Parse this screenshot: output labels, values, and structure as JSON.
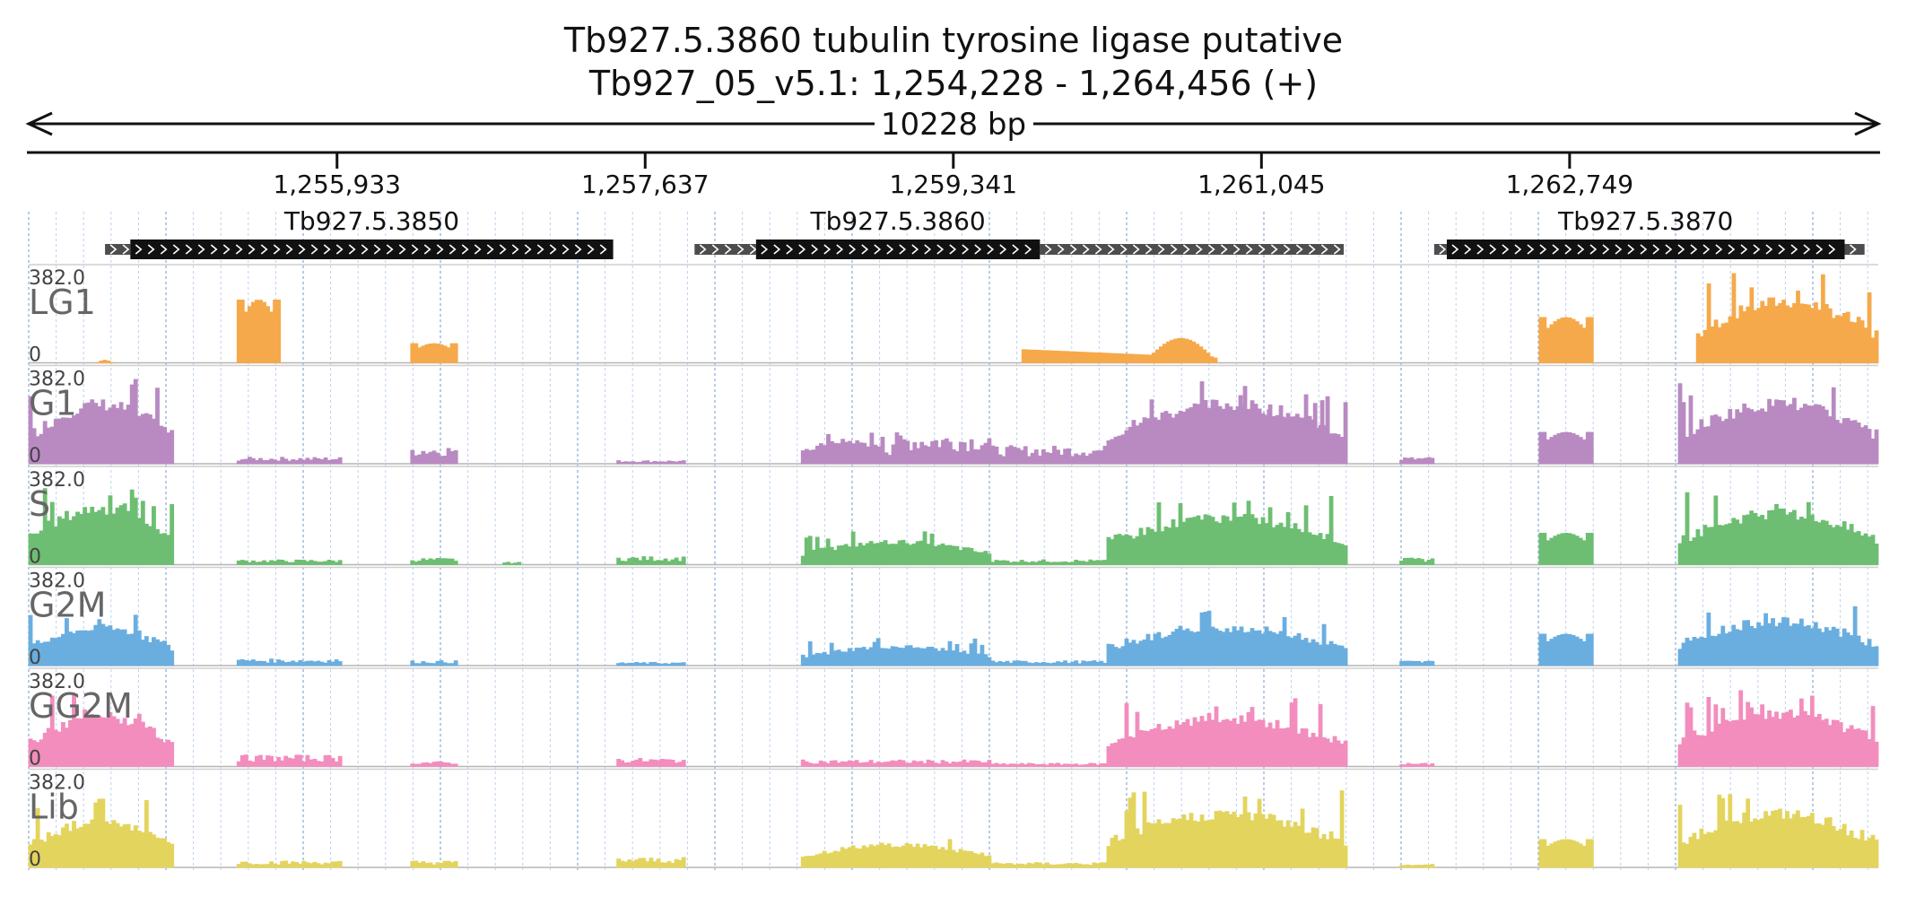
{
  "title": {
    "line1": "Tb927.5.3860  tubulin tyrosine ligase  putative",
    "line2": "Tb927_05_v5.1: 1,254,228 - 1,264,456 (+)"
  },
  "span_label": "10228 bp",
  "chart_data": {
    "type": "area",
    "x_range": [
      1254228,
      1264456
    ],
    "ticks": [
      {
        "pos": 1255933,
        "label": "1,255,933"
      },
      {
        "pos": 1257637,
        "label": "1,257,637"
      },
      {
        "pos": 1259341,
        "label": "1,259,341"
      },
      {
        "pos": 1261045,
        "label": "1,261,045"
      },
      {
        "pos": 1262749,
        "label": "1,262,749"
      }
    ],
    "genes": [
      {
        "name": "Tb927.5.3850",
        "utr5": [
          1254650,
          1254790
        ],
        "cds": [
          1254790,
          1257460
        ],
        "utr3": [
          1257460,
          1257460
        ]
      },
      {
        "name": "Tb927.5.3860",
        "utr5": [
          1257910,
          1258250
        ],
        "cds": [
          1258250,
          1259820
        ],
        "utr3": [
          1259820,
          1261500
        ]
      },
      {
        "name": "Tb927.5.3870",
        "utr5": [
          1262000,
          1262070
        ],
        "cds": [
          1262070,
          1264270
        ],
        "utr3": [
          1264270,
          1264380
        ]
      }
    ],
    "series": [
      {
        "name": "LG1",
        "color": "#F6A94A",
        "max": "382.0",
        "min": "0",
        "segments": [
          {
            "x": [
              1254600,
              1254700
            ],
            "peak": 0.03,
            "shape": "dome"
          },
          {
            "x": [
              1255380,
              1255620
            ],
            "peak": 0.72,
            "shape": "mbox"
          },
          {
            "x": [
              1256340,
              1256600
            ],
            "peak": 0.22,
            "shape": "mbox"
          },
          {
            "x": [
              1259720,
              1260800
            ],
            "peak": 0.36,
            "shape": "slope"
          },
          {
            "x": [
              1260400,
              1260800
            ],
            "peak": 0.28,
            "shape": "dome"
          },
          {
            "x": [
              1262580,
              1262880
            ],
            "peak": 0.52,
            "shape": "mbox"
          },
          {
            "x": [
              1263450,
              1264456
            ],
            "peak": 0.98,
            "shape": "spiky"
          }
        ]
      },
      {
        "name": "G1",
        "color": "#B98AC2",
        "max": "382.0",
        "min": "0",
        "segments": [
          {
            "x": [
              1254228,
              1255030
            ],
            "peak": 0.95,
            "shape": "spiky"
          },
          {
            "x": [
              1255380,
              1255960
            ],
            "peak": 0.08,
            "shape": "flat"
          },
          {
            "x": [
              1256340,
              1256600
            ],
            "peak": 0.22,
            "shape": "flat"
          },
          {
            "x": [
              1257480,
              1257860
            ],
            "peak": 0.04,
            "shape": "flat"
          },
          {
            "x": [
              1258500,
              1259000
            ],
            "peak": 0.36,
            "shape": "spiky"
          },
          {
            "x": [
              1259000,
              1259550
            ],
            "peak": 0.38,
            "shape": "flat"
          },
          {
            "x": [
              1259550,
              1260190
            ],
            "peak": 0.22,
            "shape": "flat"
          },
          {
            "x": [
              1260190,
              1261520
            ],
            "peak": 0.95,
            "shape": "spiky"
          },
          {
            "x": [
              1260900,
              1261450
            ],
            "peak": 0.8,
            "shape": "spiky"
          },
          {
            "x": [
              1261810,
              1262000
            ],
            "peak": 0.08,
            "shape": "flat"
          },
          {
            "x": [
              1262580,
              1262880
            ],
            "peak": 0.36,
            "shape": "mbox"
          },
          {
            "x": [
              1263350,
              1264456
            ],
            "peak": 0.95,
            "shape": "spiky"
          }
        ]
      },
      {
        "name": "S",
        "color": "#6DBE72",
        "max": "382.0",
        "min": "0",
        "segments": [
          {
            "x": [
              1254228,
              1255030
            ],
            "peak": 0.9,
            "shape": "spiky"
          },
          {
            "x": [
              1255380,
              1255960
            ],
            "peak": 0.06,
            "shape": "flat"
          },
          {
            "x": [
              1256340,
              1256600
            ],
            "peak": 0.08,
            "shape": "flat"
          },
          {
            "x": [
              1256850,
              1256950
            ],
            "peak": 0.03,
            "shape": "flat"
          },
          {
            "x": [
              1257480,
              1257860
            ],
            "peak": 0.1,
            "shape": "flat"
          },
          {
            "x": [
              1258500,
              1259550
            ],
            "peak": 0.36,
            "shape": "spiky"
          },
          {
            "x": [
              1259550,
              1260190
            ],
            "peak": 0.06,
            "shape": "flat"
          },
          {
            "x": [
              1260190,
              1261520
            ],
            "peak": 0.75,
            "shape": "spiky"
          },
          {
            "x": [
              1261810,
              1262000
            ],
            "peak": 0.08,
            "shape": "flat"
          },
          {
            "x": [
              1262580,
              1262880
            ],
            "peak": 0.36,
            "shape": "mbox"
          },
          {
            "x": [
              1263350,
              1264456
            ],
            "peak": 0.82,
            "shape": "spiky"
          }
        ]
      },
      {
        "name": "G2M",
        "color": "#6AAEE0",
        "max": "382.0",
        "min": "0",
        "segments": [
          {
            "x": [
              1254228,
              1255030
            ],
            "peak": 0.6,
            "shape": "spiky"
          },
          {
            "x": [
              1255380,
              1255960
            ],
            "peak": 0.08,
            "shape": "flat"
          },
          {
            "x": [
              1256340,
              1256600
            ],
            "peak": 0.06,
            "shape": "flat"
          },
          {
            "x": [
              1257480,
              1257860
            ],
            "peak": 0.04,
            "shape": "flat"
          },
          {
            "x": [
              1258500,
              1259550
            ],
            "peak": 0.3,
            "shape": "spiky"
          },
          {
            "x": [
              1259550,
              1260190
            ],
            "peak": 0.06,
            "shape": "flat"
          },
          {
            "x": [
              1260190,
              1261520
            ],
            "peak": 0.6,
            "shape": "spiky"
          },
          {
            "x": [
              1261810,
              1262000
            ],
            "peak": 0.06,
            "shape": "flat"
          },
          {
            "x": [
              1262580,
              1262880
            ],
            "peak": 0.36,
            "shape": "mbox"
          },
          {
            "x": [
              1263350,
              1264456
            ],
            "peak": 0.7,
            "shape": "spiky"
          }
        ]
      },
      {
        "name": "GG2M",
        "color": "#F28DBD",
        "max": "382.0",
        "min": "0",
        "segments": [
          {
            "x": [
              1254228,
              1255030
            ],
            "peak": 0.8,
            "shape": "spiky"
          },
          {
            "x": [
              1255380,
              1255960
            ],
            "peak": 0.14,
            "shape": "flat"
          },
          {
            "x": [
              1256340,
              1256600
            ],
            "peak": 0.06,
            "shape": "flat"
          },
          {
            "x": [
              1257480,
              1257860
            ],
            "peak": 0.1,
            "shape": "flat"
          },
          {
            "x": [
              1258500,
              1259550
            ],
            "peak": 0.08,
            "shape": "flat"
          },
          {
            "x": [
              1259550,
              1260190
            ],
            "peak": 0.04,
            "shape": "flat"
          },
          {
            "x": [
              1260190,
              1261520
            ],
            "peak": 0.75,
            "shape": "spiky"
          },
          {
            "x": [
              1261810,
              1262000
            ],
            "peak": 0.04,
            "shape": "flat"
          },
          {
            "x": [
              1263350,
              1264456
            ],
            "peak": 0.85,
            "shape": "spiky"
          }
        ]
      },
      {
        "name": "Lib",
        "color": "#E3D45D",
        "max": "382.0",
        "min": "0",
        "segments": [
          {
            "x": [
              1254228,
              1255030
            ],
            "peak": 0.75,
            "shape": "spiky"
          },
          {
            "x": [
              1255380,
              1255960
            ],
            "peak": 0.08,
            "shape": "flat"
          },
          {
            "x": [
              1256340,
              1256600
            ],
            "peak": 0.08,
            "shape": "flat"
          },
          {
            "x": [
              1257480,
              1257860
            ],
            "peak": 0.12,
            "shape": "flat"
          },
          {
            "x": [
              1258500,
              1259550
            ],
            "peak": 0.36,
            "shape": "spiky"
          },
          {
            "x": [
              1259550,
              1260190
            ],
            "peak": 0.06,
            "shape": "flat"
          },
          {
            "x": [
              1260190,
              1261520
            ],
            "peak": 0.85,
            "shape": "spiky"
          },
          {
            "x": [
              1261810,
              1262000
            ],
            "peak": 0.04,
            "shape": "flat"
          },
          {
            "x": [
              1262580,
              1262880
            ],
            "peak": 0.32,
            "shape": "mbox"
          },
          {
            "x": [
              1263350,
              1264456
            ],
            "peak": 0.85,
            "shape": "spiky"
          }
        ]
      }
    ]
  }
}
